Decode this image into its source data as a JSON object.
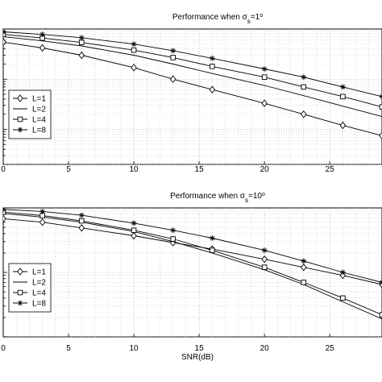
{
  "chart_data": [
    {
      "type": "line",
      "title_main": "Performance when σ",
      "title_sub": "s",
      "title_rest": "=1",
      "title_sup": "o",
      "xlabel": "",
      "ylabel": "",
      "x_ticks": [
        "0",
        "5",
        "10",
        "15",
        "20",
        "25"
      ],
      "xlim": [
        0,
        29
      ],
      "y_scale": "log",
      "grid": true,
      "legend": "left",
      "series": [
        {
          "name": "L=1",
          "marker": "diamond",
          "x": [
            0,
            3,
            6,
            10,
            13,
            16,
            20,
            23,
            26,
            29
          ],
          "y": [
            0.55,
            0.42,
            0.3,
            0.17,
            0.1,
            0.062,
            0.033,
            0.02,
            0.012,
            0.0075
          ]
        },
        {
          "name": "L=2",
          "marker": "none",
          "x": [
            0,
            3,
            6,
            10,
            13,
            16,
            20,
            23,
            26,
            29
          ],
          "y": [
            0.7,
            0.58,
            0.46,
            0.3,
            0.2,
            0.13,
            0.075,
            0.047,
            0.029,
            0.018
          ]
        },
        {
          "name": "L=4",
          "marker": "square",
          "x": [
            0,
            3,
            6,
            10,
            13,
            16,
            20,
            23,
            26,
            29
          ],
          "y": [
            0.78,
            0.66,
            0.54,
            0.38,
            0.27,
            0.18,
            0.11,
            0.07,
            0.045,
            0.028
          ]
        },
        {
          "name": "L=8",
          "marker": "star",
          "x": [
            0,
            3,
            6,
            10,
            13,
            16,
            20,
            23,
            26,
            29
          ],
          "y": [
            0.88,
            0.78,
            0.67,
            0.5,
            0.37,
            0.26,
            0.16,
            0.11,
            0.07,
            0.045
          ]
        }
      ]
    },
    {
      "type": "line",
      "title_main": "Performance when σ",
      "title_sub": "s",
      "title_rest": "=10",
      "title_sup": "o",
      "xlabel": "SNR(dB)",
      "ylabel": "",
      "x_ticks": [
        "0",
        "5",
        "10",
        "15",
        "20",
        "25"
      ],
      "xlim": [
        0,
        29
      ],
      "y_scale": "log",
      "grid": true,
      "legend": "left",
      "series": [
        {
          "name": "L=1",
          "marker": "diamond",
          "x": [
            0,
            3,
            6,
            10,
            13,
            16,
            20,
            23,
            26,
            29
          ],
          "y": [
            0.68,
            0.6,
            0.49,
            0.37,
            0.29,
            0.23,
            0.16,
            0.12,
            0.09,
            0.065
          ]
        },
        {
          "name": "L=2",
          "marker": "none",
          "x": [
            0,
            3,
            6,
            10,
            13,
            16,
            20,
            23,
            26,
            29
          ],
          "y": [
            0.82,
            0.72,
            0.6,
            0.43,
            0.3,
            0.2,
            0.11,
            0.065,
            0.035,
            0.019
          ]
        },
        {
          "name": "L=4",
          "marker": "square",
          "x": [
            0,
            3,
            6,
            10,
            13,
            16,
            20,
            23,
            26,
            29
          ],
          "y": [
            0.86,
            0.76,
            0.63,
            0.45,
            0.33,
            0.22,
            0.12,
            0.07,
            0.04,
            0.022
          ]
        },
        {
          "name": "L=8",
          "marker": "star",
          "x": [
            0,
            3,
            6,
            10,
            13,
            16,
            20,
            23,
            26,
            29
          ],
          "y": [
            0.95,
            0.88,
            0.77,
            0.58,
            0.45,
            0.34,
            0.22,
            0.15,
            0.1,
            0.07
          ]
        }
      ]
    }
  ]
}
